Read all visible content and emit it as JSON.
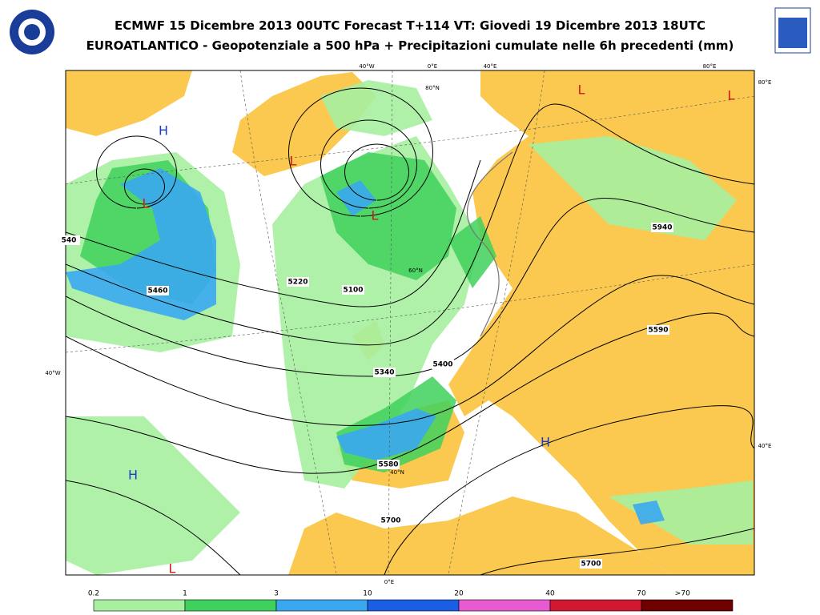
{
  "header": {
    "title_line1": "ECMWF 15 Dicembre 2013 00UTC Forecast T+114 VT: Giovedi 19 Dicembre 2013 18UTC",
    "title_line2": "EUROATLANTICO - Geopotenziale a 500 hPa + Precipitazioni cumulate nelle 6h precedenti (mm)"
  },
  "map": {
    "pressure_centers": [
      "H",
      "L",
      "L",
      "L",
      "L",
      "L",
      "H",
      "H",
      "L"
    ],
    "contour_labels": [
      "5460",
      "5220",
      "5100",
      "5340",
      "5400",
      "5580",
      "5700",
      "5700",
      "5590",
      "5940",
      "540"
    ],
    "graticule_labels": [
      "40°W",
      "0°E",
      "40°E",
      "80°E",
      "80°E",
      "40°W",
      "40°E",
      "80°N",
      "60°N",
      "40°N",
      "0°E"
    ]
  },
  "legend": {
    "labels": [
      "0.2",
      "1",
      "3",
      "10",
      "20",
      "40",
      "70",
      ">70"
    ],
    "colors": [
      "#a6f0a0",
      "#3ed15c",
      "#3aa8f0",
      "#1a5ee6",
      "#e85ad2",
      "#d01830",
      "#6e0000"
    ]
  }
}
